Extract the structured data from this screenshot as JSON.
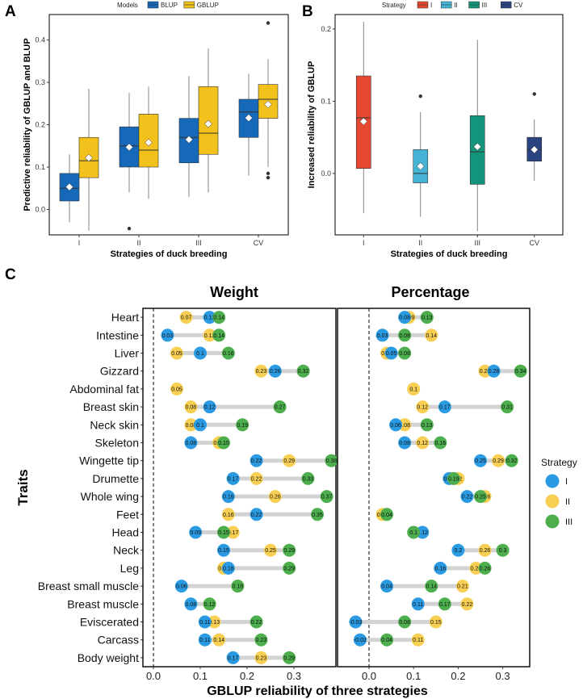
{
  "panels": {
    "a": "A",
    "b": "B",
    "c": "C"
  },
  "colors": {
    "BLUP": "#1569b8",
    "GBLUP": "#f2c11c",
    "I": "#e5482f",
    "II": "#45b4d4",
    "III": "#12957a",
    "CV": "#2a4482",
    "dotI": "#2a9be3",
    "dotII": "#f8cf52",
    "dotIII": "#4cae4c",
    "seg": "#d3d3d3"
  },
  "chart_data": [
    {
      "type": "box",
      "id": "A",
      "legend_title": "Models",
      "series": [
        {
          "name": "BLUP"
        },
        {
          "name": "GBLUP"
        }
      ],
      "categories": [
        "I",
        "II",
        "III",
        "CV"
      ],
      "xlabel": "Strategies of duck breeding",
      "ylabel": "Predictive reliability of GBLUP and BLUP",
      "ylim": [
        -0.06,
        0.46
      ],
      "yticks": [
        0.0,
        0.1,
        0.2,
        0.3,
        0.4
      ],
      "ytick_labels": [
        "0.0",
        "0.1",
        "0.2",
        "0.3",
        "0.4"
      ],
      "boxes": [
        {
          "cat": "I",
          "series": "BLUP",
          "min": -0.03,
          "q1": 0.02,
          "median": 0.05,
          "q3": 0.085,
          "max": 0.13,
          "mean": 0.053,
          "outliers": []
        },
        {
          "cat": "I",
          "series": "GBLUP",
          "min": -0.05,
          "q1": 0.075,
          "median": 0.115,
          "q3": 0.17,
          "max": 0.285,
          "mean": 0.122,
          "outliers": []
        },
        {
          "cat": "II",
          "series": "BLUP",
          "min": 0.04,
          "q1": 0.1,
          "median": 0.15,
          "q3": 0.195,
          "max": 0.275,
          "mean": 0.147,
          "outliers": [
            -0.045
          ]
        },
        {
          "cat": "II",
          "series": "GBLUP",
          "min": 0.025,
          "q1": 0.1,
          "median": 0.14,
          "q3": 0.225,
          "max": 0.29,
          "mean": 0.158,
          "outliers": []
        },
        {
          "cat": "III",
          "series": "BLUP",
          "min": 0.03,
          "q1": 0.11,
          "median": 0.17,
          "q3": 0.215,
          "max": 0.315,
          "mean": 0.165,
          "outliers": []
        },
        {
          "cat": "III",
          "series": "GBLUP",
          "min": 0.04,
          "q1": 0.13,
          "median": 0.18,
          "q3": 0.29,
          "max": 0.38,
          "mean": 0.202,
          "outliers": []
        },
        {
          "cat": "CV",
          "series": "BLUP",
          "min": 0.08,
          "q1": 0.17,
          "median": 0.23,
          "q3": 0.26,
          "max": 0.32,
          "mean": 0.216,
          "outliers": []
        },
        {
          "cat": "CV",
          "series": "GBLUP",
          "min": 0.1,
          "q1": 0.215,
          "median": 0.26,
          "q3": 0.295,
          "max": 0.355,
          "mean": 0.248,
          "outliers": [
            0.44,
            0.085,
            0.075
          ]
        }
      ]
    },
    {
      "type": "box",
      "id": "B",
      "legend_title": "Strategy",
      "series": [
        {
          "name": "I"
        },
        {
          "name": "II"
        },
        {
          "name": "III"
        },
        {
          "name": "CV"
        }
      ],
      "categories": [
        "I",
        "II",
        "III",
        "CV"
      ],
      "xlabel": "Strategies of duck breeding",
      "ylabel": "Increased reliability of GBLUP",
      "ylim": [
        -0.085,
        0.22
      ],
      "yticks": [
        0.0,
        0.1,
        0.2
      ],
      "ytick_labels": [
        "0.0",
        "0.1",
        "0.2"
      ],
      "boxes": [
        {
          "cat": "I",
          "series": "I",
          "min": -0.055,
          "q1": 0.007,
          "median": 0.077,
          "q3": 0.135,
          "max": 0.21,
          "mean": 0.072,
          "outliers": []
        },
        {
          "cat": "II",
          "series": "II",
          "min": -0.06,
          "q1": -0.013,
          "median": 0.0,
          "q3": 0.033,
          "max": 0.085,
          "mean": 0.01,
          "outliers": [
            0.107
          ]
        },
        {
          "cat": "III",
          "series": "III",
          "min": -0.08,
          "q1": -0.015,
          "median": 0.03,
          "q3": 0.08,
          "max": 0.185,
          "mean": 0.037,
          "outliers": []
        },
        {
          "cat": "CV",
          "series": "CV",
          "min": -0.01,
          "q1": 0.017,
          "median": 0.033,
          "q3": 0.05,
          "max": 0.075,
          "mean": 0.033,
          "outliers": [
            0.11
          ]
        }
      ]
    },
    {
      "type": "dumbbell",
      "id": "C",
      "facets": [
        "Weight",
        "Percentage"
      ],
      "xlabel": "GBLUP reliability of three strategies",
      "ylabel": "Traits",
      "legend_title": "Strategy",
      "strategies": [
        "I",
        "II",
        "III"
      ],
      "xticks": [
        0.0,
        0.1,
        0.2,
        0.3
      ],
      "xtick_labels": [
        "0.0",
        "0.1",
        "0.2",
        "0.3"
      ],
      "traits": [
        "Heart",
        "Intestine",
        "Liver",
        "Gizzard",
        "Abdominal fat",
        "Breast skin",
        "Neck skin",
        "Skeleton",
        "Wingette tip",
        "Drumette",
        "Whole wing",
        "Feet",
        "Head",
        "Neck",
        "Leg",
        "Breast small muscle",
        "Breast muscle",
        "Eviscerated",
        "Carcass",
        "Body weight"
      ],
      "weight": [
        {
          "I": 0.12,
          "II": 0.07,
          "III": 0.14
        },
        {
          "I": 0.03,
          "II": 0.12,
          "III": 0.14
        },
        {
          "I": 0.1,
          "II": 0.05,
          "III": 0.16
        },
        {
          "I": 0.26,
          "II": 0.23,
          "III": 0.32
        },
        {
          "I": null,
          "II": 0.05,
          "III": null
        },
        {
          "I": 0.12,
          "II": 0.08,
          "III": 0.27
        },
        {
          "I": 0.1,
          "II": 0.08,
          "III": 0.19
        },
        {
          "I": 0.08,
          "II": 0.14,
          "III": 0.15
        },
        {
          "I": 0.22,
          "II": 0.29,
          "III": 0.38
        },
        {
          "I": 0.17,
          "II": 0.22,
          "III": 0.33
        },
        {
          "I": 0.16,
          "II": 0.26,
          "III": 0.37
        },
        {
          "I": 0.22,
          "II": 0.16,
          "III": 0.35
        },
        {
          "I": 0.09,
          "II": 0.17,
          "III": 0.15
        },
        {
          "I": 0.15,
          "II": 0.25,
          "III": 0.29
        },
        {
          "I": 0.16,
          "II": 0.15,
          "III": 0.29
        },
        {
          "I": 0.06,
          "II": 0.18,
          "III": 0.18
        },
        {
          "I": 0.08,
          "II": 0.12,
          "III": 0.12
        },
        {
          "I": 0.11,
          "II": 0.13,
          "III": 0.22
        },
        {
          "I": 0.11,
          "II": 0.14,
          "III": 0.23
        },
        {
          "I": 0.17,
          "II": 0.23,
          "III": 0.29
        }
      ],
      "percentage": [
        {
          "I": 0.08,
          "II": 0.09,
          "III": 0.13
        },
        {
          "I": 0.03,
          "II": 0.14,
          "III": 0.08
        },
        {
          "I": 0.05,
          "II": 0.04,
          "III": 0.08
        },
        {
          "I": 0.28,
          "II": 0.26,
          "III": 0.34
        },
        {
          "I": null,
          "II": 0.1,
          "III": null
        },
        {
          "I": 0.17,
          "II": 0.12,
          "III": 0.31
        },
        {
          "I": 0.06,
          "II": 0.08,
          "III": 0.13
        },
        {
          "I": 0.08,
          "II": 0.12,
          "III": 0.16
        },
        {
          "I": 0.25,
          "II": 0.29,
          "III": 0.32
        },
        {
          "I": 0.18,
          "II": 0.2,
          "III": 0.19
        },
        {
          "I": 0.22,
          "II": 0.26,
          "III": 0.25
        },
        {
          "I": null,
          "II": 0.03,
          "III": 0.04
        },
        {
          "I": 0.12,
          "II": 0.12,
          "III": 0.1
        },
        {
          "I": 0.2,
          "II": 0.26,
          "III": 0.3
        },
        {
          "I": 0.16,
          "II": 0.24,
          "III": 0.26
        },
        {
          "I": 0.04,
          "II": 0.21,
          "III": 0.14
        },
        {
          "I": 0.11,
          "II": 0.22,
          "III": 0.17
        },
        {
          "I": -0.03,
          "II": 0.15,
          "III": 0.08
        },
        {
          "I": -0.02,
          "II": 0.11,
          "III": 0.04
        },
        {
          "I": null,
          "II": null,
          "III": null
        }
      ]
    }
  ]
}
